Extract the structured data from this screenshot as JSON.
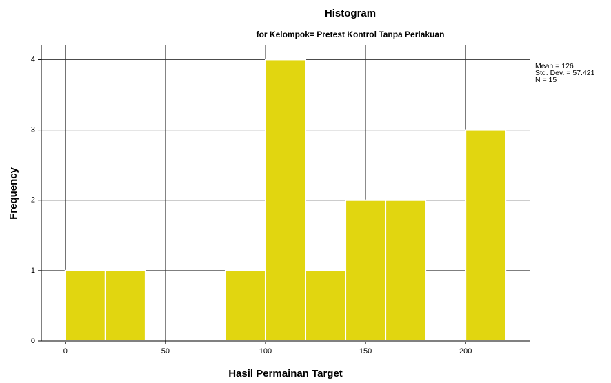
{
  "chart_data": {
    "type": "histogram",
    "title": "Histogram",
    "subtitle": "for Kelompok= Pretest Kontrol Tanpa Perlakuan",
    "x_label": "Hasil Permainan Target",
    "y_label": "Frequency",
    "bins": [
      0,
      20,
      40,
      60,
      80,
      100,
      120,
      140,
      160,
      180,
      200,
      220
    ],
    "counts": [
      1,
      1,
      0,
      0,
      1,
      4,
      1,
      2,
      2,
      0,
      3
    ],
    "color": "#e1d610",
    "xlim": [
      -12,
      232
    ],
    "xticks": [
      0,
      50,
      100,
      150,
      200
    ],
    "ylim": [
      0,
      4.2
    ],
    "yticks": [
      0,
      1,
      2,
      3,
      4
    ],
    "grid": true,
    "annotations": [
      "Mean = 126",
      "Std. Dev. = 57.421",
      "N = 15"
    ]
  }
}
